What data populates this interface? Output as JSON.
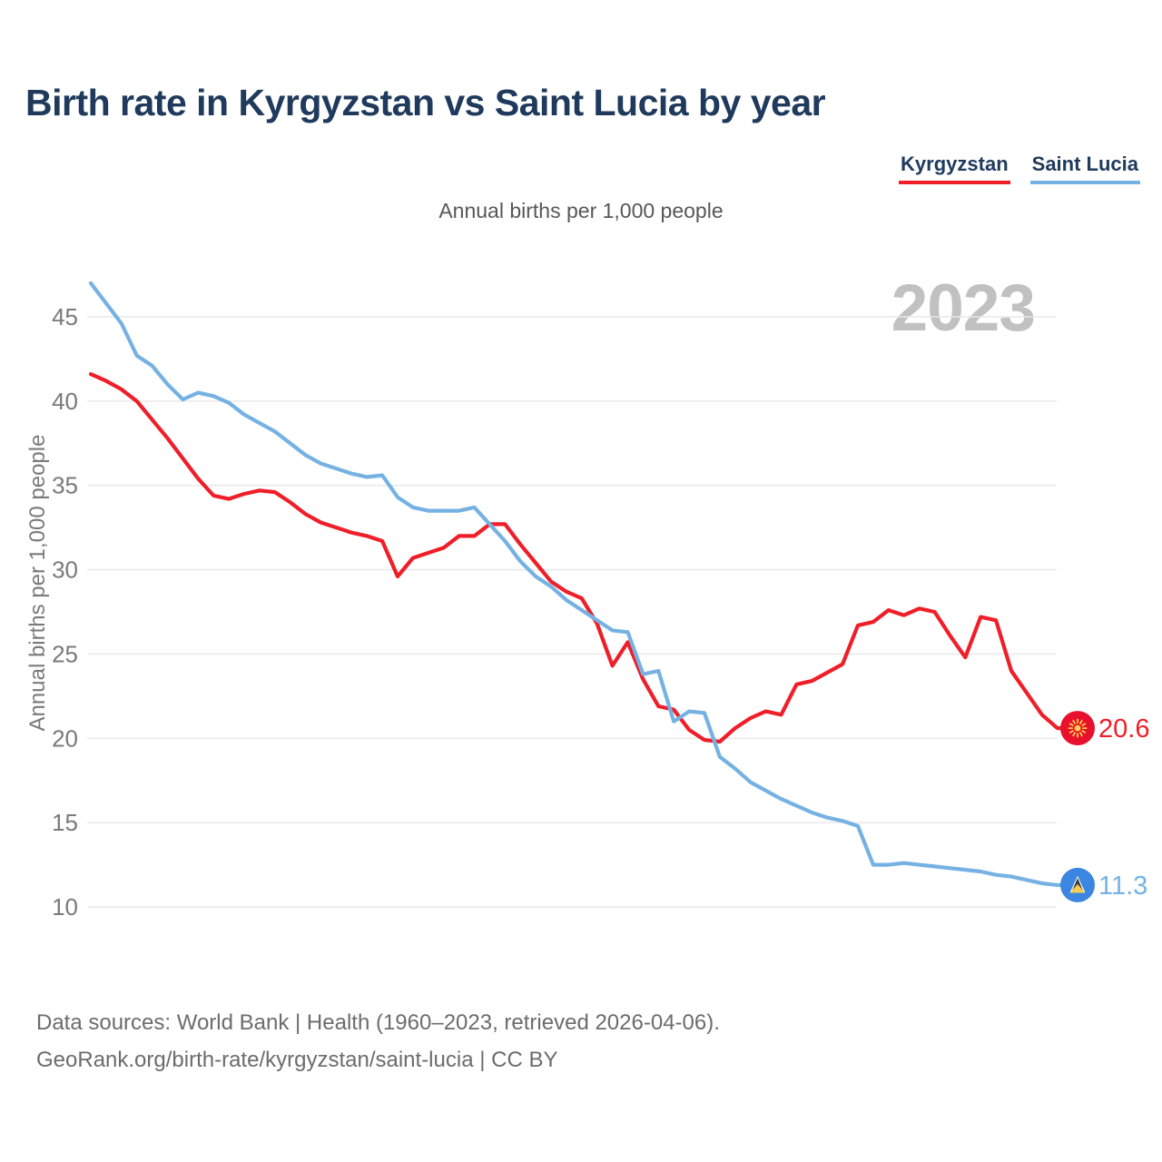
{
  "header": {
    "title": "Birth rate in Kyrgyzstan vs Saint Lucia by year"
  },
  "legend": {
    "items": [
      {
        "label": "Kyrgyzstan",
        "color": "#f01e28"
      },
      {
        "label": "Saint Lucia",
        "color": "#75b2e3"
      }
    ]
  },
  "subtitle": "Annual births per 1,000 people",
  "watermark": "2023",
  "chart_data": {
    "type": "line",
    "title": "Birth rate in Kyrgyzstan vs Saint Lucia by year",
    "ylabel": "Annual births per 1,000 people",
    "xlabel": "",
    "grid": "horizontal",
    "legend_position": "top-right",
    "ylim": [
      10,
      47.5
    ],
    "yticks": [
      10,
      15,
      20,
      25,
      30,
      35,
      40,
      45
    ],
    "xticks": [
      1960,
      1970,
      1980,
      1990,
      2000,
      2010,
      2020
    ],
    "x": [
      1960,
      1961,
      1962,
      1963,
      1964,
      1965,
      1966,
      1967,
      1968,
      1969,
      1970,
      1971,
      1972,
      1973,
      1974,
      1975,
      1976,
      1977,
      1978,
      1979,
      1980,
      1981,
      1982,
      1983,
      1984,
      1985,
      1986,
      1987,
      1988,
      1989,
      1990,
      1991,
      1992,
      1993,
      1994,
      1995,
      1996,
      1997,
      1998,
      1999,
      2000,
      2001,
      2002,
      2003,
      2004,
      2005,
      2006,
      2007,
      2008,
      2009,
      2010,
      2011,
      2012,
      2013,
      2014,
      2015,
      2016,
      2017,
      2018,
      2019,
      2020,
      2021,
      2022,
      2023
    ],
    "series": [
      {
        "name": "Kyrgyzstan",
        "color": "#f01e28",
        "badge_color": "#e8112d",
        "icon": "kyrgyzstan-flag",
        "end_label": "20.6",
        "values": [
          41.6,
          41.2,
          40.7,
          40.0,
          38.9,
          37.8,
          36.6,
          35.4,
          34.4,
          34.2,
          34.5,
          34.7,
          34.6,
          34.0,
          33.3,
          32.8,
          32.5,
          32.2,
          32.0,
          31.7,
          29.6,
          30.7,
          31.0,
          31.3,
          32.0,
          32.0,
          32.7,
          32.7,
          31.5,
          30.4,
          29.3,
          28.7,
          28.3,
          26.8,
          24.3,
          25.7,
          23.5,
          21.9,
          21.7,
          20.5,
          19.9,
          19.8,
          20.6,
          21.2,
          21.6,
          21.4,
          23.2,
          23.4,
          23.9,
          24.4,
          26.7,
          26.9,
          27.6,
          27.3,
          27.7,
          27.5,
          26.1,
          24.8,
          27.2,
          27.0,
          24.0,
          22.7,
          21.4,
          20.6
        ]
      },
      {
        "name": "Saint Lucia",
        "color": "#75b2e3",
        "badge_color": "#3a86e0",
        "icon": "saint-lucia-flag",
        "end_label": "11.3",
        "values": [
          47.0,
          45.8,
          44.6,
          42.7,
          42.1,
          41.0,
          40.1,
          40.5,
          40.3,
          39.9,
          39.2,
          38.7,
          38.2,
          37.5,
          36.8,
          36.3,
          36.0,
          35.7,
          35.5,
          35.6,
          34.3,
          33.7,
          33.5,
          33.5,
          33.5,
          33.7,
          32.7,
          31.7,
          30.5,
          29.6,
          29.0,
          28.2,
          27.6,
          27.0,
          26.4,
          26.3,
          23.8,
          24.0,
          21.0,
          21.6,
          21.5,
          18.9,
          18.2,
          17.4,
          16.9,
          16.4,
          16.0,
          15.6,
          15.3,
          15.1,
          14.8,
          12.5,
          12.5,
          12.6,
          12.5,
          12.4,
          12.3,
          12.2,
          12.1,
          11.9,
          11.8,
          11.6,
          11.4,
          11.3
        ]
      }
    ]
  },
  "footer": {
    "line1": "Data sources: World Bank | Health (1960–2023, retrieved 2026-04-06).",
    "line2": "GeoRank.org/birth-rate/kyrgyzstan/saint-lucia | CC BY"
  }
}
